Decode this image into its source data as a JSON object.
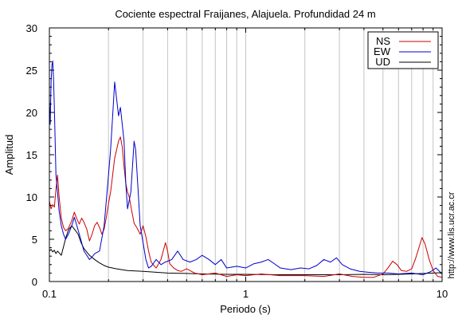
{
  "chart_data": {
    "type": "line",
    "title": "Cociente espectral Fraijanes, Alajuela. Profundidad 24 m",
    "xlabel": "Periodo (s)",
    "ylabel": "Amplitud",
    "xscale": "log",
    "xlim": [
      0.1,
      10
    ],
    "ylim": [
      0,
      30
    ],
    "x_ticks": [
      0.1,
      1,
      10
    ],
    "x_tick_labels": [
      "0.1",
      "1",
      "10"
    ],
    "y_ticks": [
      0,
      5,
      10,
      15,
      20,
      25,
      30
    ],
    "y_tick_labels": [
      "0",
      "5",
      "10",
      "15",
      "20",
      "25",
      "30"
    ],
    "grid": "vertical-log",
    "legend_position": "top-right",
    "credit": "http://www.lis.ucr.ac.cr",
    "series": [
      {
        "name": "NS",
        "color": "#cc0000",
        "points": [
          [
            0.1,
            9.5
          ],
          [
            0.102,
            8.6
          ],
          [
            0.104,
            9.1
          ],
          [
            0.106,
            8.8
          ],
          [
            0.108,
            10.9
          ],
          [
            0.11,
            12.6
          ],
          [
            0.112,
            10.1
          ],
          [
            0.115,
            7.5
          ],
          [
            0.118,
            6.4
          ],
          [
            0.121,
            6.0
          ],
          [
            0.125,
            6.3
          ],
          [
            0.13,
            7.2
          ],
          [
            0.134,
            8.2
          ],
          [
            0.138,
            7.4
          ],
          [
            0.142,
            6.8
          ],
          [
            0.146,
            7.5
          ],
          [
            0.15,
            7.0
          ],
          [
            0.155,
            6.2
          ],
          [
            0.16,
            4.8
          ],
          [
            0.165,
            5.6
          ],
          [
            0.17,
            6.6
          ],
          [
            0.175,
            7.0
          ],
          [
            0.18,
            6.4
          ],
          [
            0.185,
            5.6
          ],
          [
            0.19,
            6.2
          ],
          [
            0.195,
            7.6
          ],
          [
            0.2,
            9.2
          ],
          [
            0.205,
            10.6
          ],
          [
            0.21,
            12.6
          ],
          [
            0.215,
            14.6
          ],
          [
            0.22,
            15.6
          ],
          [
            0.225,
            16.6
          ],
          [
            0.23,
            17.1
          ],
          [
            0.235,
            15.9
          ],
          [
            0.24,
            13.6
          ],
          [
            0.245,
            11.6
          ],
          [
            0.25,
            10.6
          ],
          [
            0.255,
            10.0
          ],
          [
            0.26,
            8.9
          ],
          [
            0.265,
            7.9
          ],
          [
            0.27,
            6.9
          ],
          [
            0.28,
            6.3
          ],
          [
            0.29,
            5.6
          ],
          [
            0.3,
            6.6
          ],
          [
            0.31,
            5.3
          ],
          [
            0.32,
            3.6
          ],
          [
            0.33,
            2.3
          ],
          [
            0.34,
            1.9
          ],
          [
            0.35,
            1.6
          ],
          [
            0.36,
            2.1
          ],
          [
            0.37,
            2.6
          ],
          [
            0.38,
            3.6
          ],
          [
            0.39,
            4.6
          ],
          [
            0.4,
            3.6
          ],
          [
            0.41,
            2.1
          ],
          [
            0.43,
            1.6
          ],
          [
            0.45,
            1.3
          ],
          [
            0.47,
            1.2
          ],
          [
            0.5,
            1.5
          ],
          [
            0.55,
            1.0
          ],
          [
            0.6,
            0.8
          ],
          [
            0.7,
            1.0
          ],
          [
            0.8,
            0.6
          ],
          [
            0.9,
            0.8
          ],
          [
            1.0,
            0.7
          ],
          [
            1.2,
            0.9
          ],
          [
            1.5,
            0.7
          ],
          [
            2.0,
            0.7
          ],
          [
            2.5,
            0.6
          ],
          [
            3.0,
            0.9
          ],
          [
            3.5,
            0.6
          ],
          [
            4.0,
            0.5
          ],
          [
            4.5,
            0.5
          ],
          [
            5.0,
            0.9
          ],
          [
            5.3,
            1.6
          ],
          [
            5.6,
            2.4
          ],
          [
            5.9,
            2.0
          ],
          [
            6.2,
            1.3
          ],
          [
            6.6,
            1.2
          ],
          [
            7.0,
            1.5
          ],
          [
            7.3,
            2.6
          ],
          [
            7.6,
            3.9
          ],
          [
            7.9,
            5.2
          ],
          [
            8.2,
            4.4
          ],
          [
            8.6,
            2.6
          ],
          [
            9.0,
            1.3
          ],
          [
            9.5,
            0.6
          ],
          [
            10.0,
            0.5
          ]
        ]
      },
      {
        "name": "EW",
        "color": "#0000cc",
        "points": [
          [
            0.1,
            21.5
          ],
          [
            0.101,
            18.6
          ],
          [
            0.102,
            23.6
          ],
          [
            0.103,
            25.6
          ],
          [
            0.104,
            26.1
          ],
          [
            0.105,
            24.0
          ],
          [
            0.106,
            20.6
          ],
          [
            0.107,
            16.6
          ],
          [
            0.108,
            12.6
          ],
          [
            0.11,
            10.6
          ],
          [
            0.112,
            8.4
          ],
          [
            0.115,
            6.6
          ],
          [
            0.118,
            5.6
          ],
          [
            0.121,
            5.0
          ],
          [
            0.125,
            5.6
          ],
          [
            0.13,
            6.6
          ],
          [
            0.134,
            7.6
          ],
          [
            0.138,
            6.6
          ],
          [
            0.142,
            5.6
          ],
          [
            0.146,
            4.6
          ],
          [
            0.15,
            3.6
          ],
          [
            0.155,
            3.1
          ],
          [
            0.16,
            2.6
          ],
          [
            0.165,
            2.9
          ],
          [
            0.17,
            3.3
          ],
          [
            0.18,
            3.6
          ],
          [
            0.19,
            6.6
          ],
          [
            0.195,
            9.6
          ],
          [
            0.2,
            12.6
          ],
          [
            0.205,
            15.6
          ],
          [
            0.21,
            19.6
          ],
          [
            0.215,
            23.6
          ],
          [
            0.22,
            21.6
          ],
          [
            0.225,
            19.6
          ],
          [
            0.23,
            20.6
          ],
          [
            0.235,
            18.6
          ],
          [
            0.24,
            16.6
          ],
          [
            0.245,
            11.6
          ],
          [
            0.25,
            8.6
          ],
          [
            0.255,
            9.6
          ],
          [
            0.26,
            10.6
          ],
          [
            0.265,
            13.6
          ],
          [
            0.27,
            16.6
          ],
          [
            0.275,
            15.6
          ],
          [
            0.28,
            12.6
          ],
          [
            0.285,
            9.6
          ],
          [
            0.29,
            6.6
          ],
          [
            0.3,
            4.6
          ],
          [
            0.31,
            2.6
          ],
          [
            0.32,
            1.6
          ],
          [
            0.33,
            1.8
          ],
          [
            0.35,
            2.6
          ],
          [
            0.37,
            2.0
          ],
          [
            0.39,
            2.3
          ],
          [
            0.42,
            2.6
          ],
          [
            0.45,
            3.6
          ],
          [
            0.48,
            2.6
          ],
          [
            0.52,
            2.3
          ],
          [
            0.56,
            2.6
          ],
          [
            0.6,
            3.1
          ],
          [
            0.65,
            2.6
          ],
          [
            0.7,
            2.0
          ],
          [
            0.75,
            2.6
          ],
          [
            0.8,
            1.6
          ],
          [
            0.9,
            1.8
          ],
          [
            1.0,
            1.6
          ],
          [
            1.1,
            2.1
          ],
          [
            1.2,
            2.3
          ],
          [
            1.3,
            2.6
          ],
          [
            1.4,
            2.1
          ],
          [
            1.5,
            1.6
          ],
          [
            1.7,
            1.4
          ],
          [
            1.9,
            1.6
          ],
          [
            2.1,
            1.5
          ],
          [
            2.3,
            1.9
          ],
          [
            2.5,
            2.6
          ],
          [
            2.7,
            2.3
          ],
          [
            2.9,
            2.8
          ],
          [
            3.1,
            2.0
          ],
          [
            3.4,
            1.5
          ],
          [
            3.8,
            1.2
          ],
          [
            4.2,
            1.1
          ],
          [
            4.7,
            1.0
          ],
          [
            5.3,
            1.0
          ],
          [
            6.0,
            0.9
          ],
          [
            7.0,
            1.0
          ],
          [
            8.0,
            0.8
          ],
          [
            8.8,
            1.2
          ],
          [
            9.3,
            1.6
          ],
          [
            9.7,
            1.2
          ],
          [
            10.0,
            0.9
          ]
        ]
      },
      {
        "name": "UD",
        "color": "#000000",
        "points": [
          [
            0.1,
            3.6
          ],
          [
            0.102,
            3.8
          ],
          [
            0.104,
            3.5
          ],
          [
            0.106,
            3.7
          ],
          [
            0.108,
            3.3
          ],
          [
            0.11,
            3.6
          ],
          [
            0.112,
            3.4
          ],
          [
            0.115,
            3.1
          ],
          [
            0.118,
            4.1
          ],
          [
            0.121,
            5.1
          ],
          [
            0.125,
            6.1
          ],
          [
            0.13,
            6.6
          ],
          [
            0.135,
            6.1
          ],
          [
            0.14,
            5.6
          ],
          [
            0.145,
            4.6
          ],
          [
            0.15,
            3.9
          ],
          [
            0.16,
            3.1
          ],
          [
            0.17,
            2.6
          ],
          [
            0.18,
            2.2
          ],
          [
            0.19,
            1.9
          ],
          [
            0.2,
            1.7
          ],
          [
            0.22,
            1.5
          ],
          [
            0.25,
            1.3
          ],
          [
            0.3,
            1.2
          ],
          [
            0.35,
            1.1
          ],
          [
            0.4,
            1.0
          ],
          [
            0.5,
            0.95
          ],
          [
            0.6,
            0.9
          ],
          [
            0.8,
            0.85
          ],
          [
            1.0,
            0.85
          ],
          [
            1.5,
            0.8
          ],
          [
            2.0,
            0.8
          ],
          [
            3.0,
            0.8
          ],
          [
            4.0,
            0.85
          ],
          [
            5.0,
            0.8
          ],
          [
            6.0,
            0.85
          ],
          [
            7.0,
            0.9
          ],
          [
            8.0,
            0.95
          ],
          [
            9.0,
            1.0
          ],
          [
            10.0,
            1.05
          ]
        ]
      }
    ]
  }
}
